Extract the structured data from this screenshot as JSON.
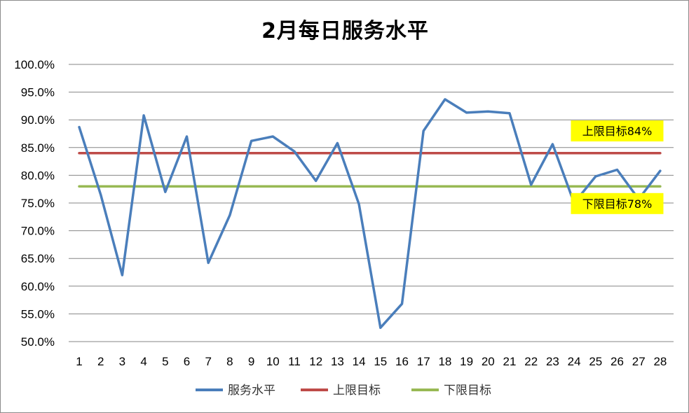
{
  "chart_data": {
    "type": "line",
    "title": "2月每日服务水平",
    "x": [
      1,
      2,
      3,
      4,
      5,
      6,
      7,
      8,
      9,
      10,
      11,
      12,
      13,
      14,
      15,
      16,
      17,
      18,
      19,
      20,
      21,
      22,
      23,
      24,
      25,
      26,
      27,
      28
    ],
    "ylim": [
      0.5,
      1.0
    ],
    "yticks": [
      0.5,
      0.55,
      0.6,
      0.65,
      0.7,
      0.75,
      0.8,
      0.85,
      0.9,
      0.95,
      1.0
    ],
    "ytick_labels": [
      "50.0%",
      "55.0%",
      "60.0%",
      "65.0%",
      "70.0%",
      "75.0%",
      "80.0%",
      "85.0%",
      "90.0%",
      "95.0%",
      "100.0%"
    ],
    "grid": true,
    "legend_position": "bottom",
    "series": [
      {
        "name": "服务水平",
        "color": "#4a7ebb",
        "values": [
          0.887,
          0.765,
          0.62,
          0.908,
          0.77,
          0.87,
          0.642,
          0.728,
          0.862,
          0.87,
          0.843,
          0.79,
          0.858,
          0.748,
          0.525,
          0.568,
          0.88,
          0.937,
          0.913,
          0.915,
          0.912,
          0.783,
          0.856,
          0.75,
          0.798,
          0.81,
          0.757,
          0.808
        ]
      },
      {
        "name": "上限目标",
        "color": "#be4b48",
        "values": [
          0.84,
          0.84,
          0.84,
          0.84,
          0.84,
          0.84,
          0.84,
          0.84,
          0.84,
          0.84,
          0.84,
          0.84,
          0.84,
          0.84,
          0.84,
          0.84,
          0.84,
          0.84,
          0.84,
          0.84,
          0.84,
          0.84,
          0.84,
          0.84,
          0.84,
          0.84,
          0.84,
          0.84
        ]
      },
      {
        "name": "下限目标",
        "color": "#98b954",
        "values": [
          0.78,
          0.78,
          0.78,
          0.78,
          0.78,
          0.78,
          0.78,
          0.78,
          0.78,
          0.78,
          0.78,
          0.78,
          0.78,
          0.78,
          0.78,
          0.78,
          0.78,
          0.78,
          0.78,
          0.78,
          0.78,
          0.78,
          0.78,
          0.78,
          0.78,
          0.78,
          0.78,
          0.78
        ]
      }
    ],
    "annotations": [
      {
        "text": "上限目标84%",
        "x": 26,
        "y": 0.88,
        "background": "#ffff00"
      },
      {
        "text": "下限目标78%",
        "x": 26,
        "y": 0.749,
        "background": "#ffff00"
      }
    ]
  }
}
